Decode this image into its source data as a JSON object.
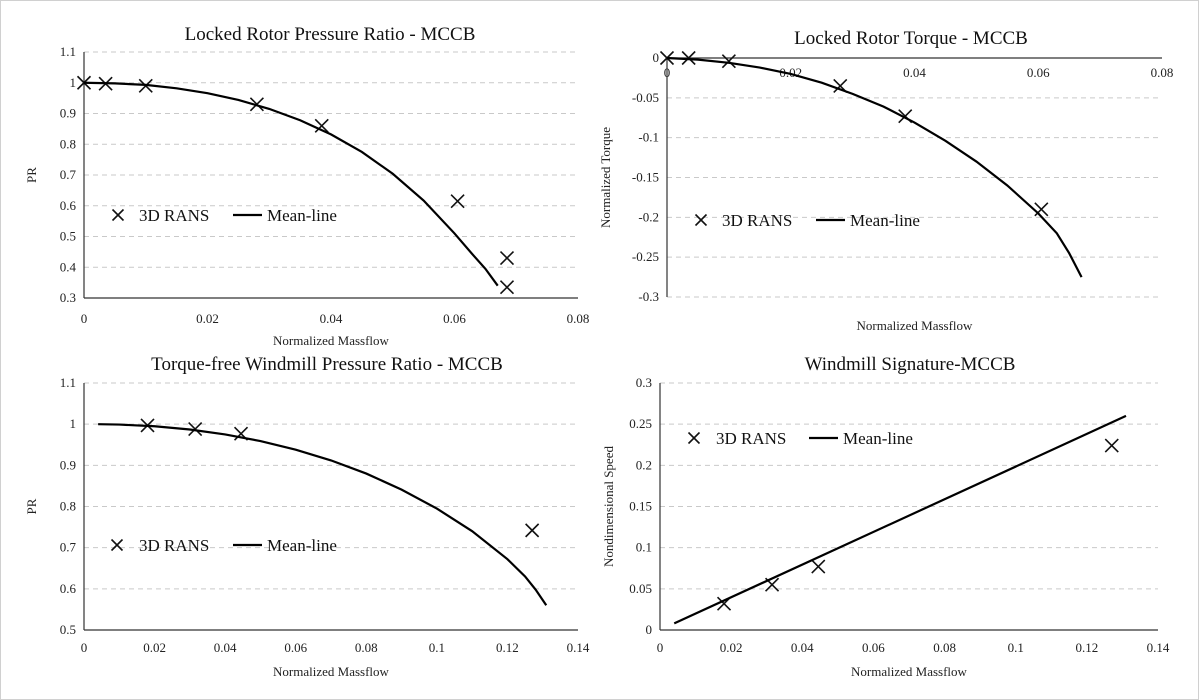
{
  "chart_data": [
    {
      "id": "pr_locked",
      "type": "line",
      "title": "Locked Rotor Pressure Ratio - MCCB",
      "xlabel": "Normalized Massflow",
      "ylabel": "PR",
      "xlim": [
        0,
        0.08
      ],
      "ylim": [
        0.3,
        1.1
      ],
      "xticks": [
        "0",
        "0.02",
        "0.04",
        "0.06",
        "0.08"
      ],
      "yticks": [
        "0.3",
        "0.4",
        "0.5",
        "0.6",
        "0.7",
        "0.8",
        "0.9",
        "1",
        "1.1"
      ],
      "xtick_values": [
        0,
        0.02,
        0.04,
        0.06,
        0.08
      ],
      "ytick_values": [
        0.3,
        0.4,
        0.5,
        0.6,
        0.7,
        0.8,
        0.9,
        1.0,
        1.1
      ],
      "grid": "horizontal-dashed",
      "legend": [
        "3D RANS",
        "Mean-line"
      ],
      "legend_placement": "center-left",
      "series": [
        {
          "name": "3D RANS",
          "kind": "scatter",
          "x": [
            0.0,
            0.0035,
            0.01,
            0.028,
            0.0385,
            0.0605,
            0.0685,
            0.0685
          ],
          "y": [
            1.0,
            0.997,
            0.99,
            0.93,
            0.86,
            0.615,
            0.43,
            0.335
          ]
        },
        {
          "name": "Mean-line",
          "kind": "line",
          "x": [
            0.0,
            0.005,
            0.01,
            0.015,
            0.02,
            0.025,
            0.03,
            0.035,
            0.04,
            0.045,
            0.05,
            0.055,
            0.06,
            0.063,
            0.065,
            0.067
          ],
          "y": [
            1.0,
            0.998,
            0.993,
            0.982,
            0.966,
            0.944,
            0.915,
            0.878,
            0.832,
            0.775,
            0.704,
            0.617,
            0.51,
            0.44,
            0.395,
            0.34
          ]
        }
      ]
    },
    {
      "id": "torque_locked",
      "type": "line",
      "title": "Locked Rotor Torque - MCCB",
      "xlabel": "Normalized Massflow",
      "ylabel": "Normalized Torque",
      "xlim": [
        0,
        0.08
      ],
      "ylim": [
        -0.3,
        0
      ],
      "xticks": [
        "0",
        "0.02",
        "0.04",
        "0.06",
        "0.08"
      ],
      "yticks": [
        "0",
        "-0.05",
        "-0.1",
        "-0.15",
        "-0.2",
        "-0.25",
        "-0.3"
      ],
      "xtick_values": [
        0,
        0.02,
        0.04,
        0.06,
        0.08
      ],
      "ytick_values": [
        0,
        -0.05,
        -0.1,
        -0.15,
        -0.2,
        -0.25,
        -0.3
      ],
      "grid": "horizontal-dashed",
      "legend": [
        "3D RANS",
        "Mean-line"
      ],
      "legend_placement": "center-left",
      "series": [
        {
          "name": "3D RANS",
          "kind": "scatter",
          "x": [
            0.0,
            0.0035,
            0.01,
            0.028,
            0.0385,
            0.0605
          ],
          "y": [
            0.0,
            0.0,
            -0.004,
            -0.035,
            -0.073,
            -0.19
          ]
        },
        {
          "name": "Mean-line",
          "kind": "line",
          "x": [
            0.0,
            0.005,
            0.01,
            0.015,
            0.02,
            0.025,
            0.03,
            0.035,
            0.04,
            0.045,
            0.05,
            0.055,
            0.06,
            0.063,
            0.065,
            0.067
          ],
          "y": [
            0.0,
            -0.002,
            -0.006,
            -0.012,
            -0.02,
            -0.031,
            -0.045,
            -0.061,
            -0.081,
            -0.104,
            -0.13,
            -0.16,
            -0.195,
            -0.22,
            -0.245,
            -0.275
          ]
        }
      ]
    },
    {
      "id": "pr_windmill",
      "type": "line",
      "title": "Torque-free Windmill Pressure Ratio - MCCB",
      "xlabel": "Normalized Massflow",
      "ylabel": "PR",
      "xlim": [
        0,
        0.14
      ],
      "ylim": [
        0.5,
        1.1
      ],
      "xticks": [
        "0",
        "0.02",
        "0.04",
        "0.06",
        "0.08",
        "0.1",
        "0.12",
        "0.14"
      ],
      "yticks": [
        "0.5",
        "0.6",
        "0.7",
        "0.8",
        "0.9",
        "1",
        "1.1"
      ],
      "xtick_values": [
        0,
        0.02,
        0.04,
        0.06,
        0.08,
        0.1,
        0.12,
        0.14
      ],
      "ytick_values": [
        0.5,
        0.6,
        0.7,
        0.8,
        0.9,
        1.0,
        1.1
      ],
      "grid": "horizontal-dashed",
      "legend": [
        "3D RANS",
        "Mean-line"
      ],
      "legend_placement": "center-left",
      "series": [
        {
          "name": "3D RANS",
          "kind": "scatter",
          "x": [
            0.018,
            0.0315,
            0.0445,
            0.127
          ],
          "y": [
            0.997,
            0.988,
            0.977,
            0.742
          ]
        },
        {
          "name": "Mean-line",
          "kind": "line",
          "x": [
            0.004,
            0.01,
            0.02,
            0.03,
            0.04,
            0.05,
            0.06,
            0.07,
            0.08,
            0.09,
            0.1,
            0.11,
            0.12,
            0.125,
            0.128,
            0.131
          ],
          "y": [
            1.0,
            0.999,
            0.995,
            0.987,
            0.975,
            0.959,
            0.938,
            0.912,
            0.88,
            0.841,
            0.795,
            0.74,
            0.672,
            0.63,
            0.598,
            0.56
          ]
        }
      ]
    },
    {
      "id": "windmill_signature",
      "type": "line",
      "title": "Windmill Signature-MCCB",
      "xlabel": "Normalized Massflow",
      "ylabel": "Nondimensional Speed",
      "xlim": [
        0,
        0.14
      ],
      "ylim": [
        0,
        0.3
      ],
      "xticks": [
        "0",
        "0.02",
        "0.04",
        "0.06",
        "0.08",
        "0.1",
        "0.12",
        "0.14"
      ],
      "yticks": [
        "0",
        "0.05",
        "0.1",
        "0.15",
        "0.2",
        "0.25",
        "0.3"
      ],
      "xtick_values": [
        0,
        0.02,
        0.04,
        0.06,
        0.08,
        0.1,
        0.12,
        0.14
      ],
      "ytick_values": [
        0,
        0.05,
        0.1,
        0.15,
        0.2,
        0.25,
        0.3
      ],
      "grid": "horizontal-dashed",
      "legend": [
        "3D RANS",
        "Mean-line"
      ],
      "legend_placement": "top-left",
      "series": [
        {
          "name": "3D RANS",
          "kind": "scatter",
          "x": [
            0.018,
            0.0315,
            0.0445,
            0.127
          ],
          "y": [
            0.032,
            0.055,
            0.077,
            0.224
          ]
        },
        {
          "name": "Mean-line",
          "kind": "line",
          "x": [
            0.004,
            0.131
          ],
          "y": [
            0.008,
            0.26
          ]
        }
      ]
    }
  ]
}
